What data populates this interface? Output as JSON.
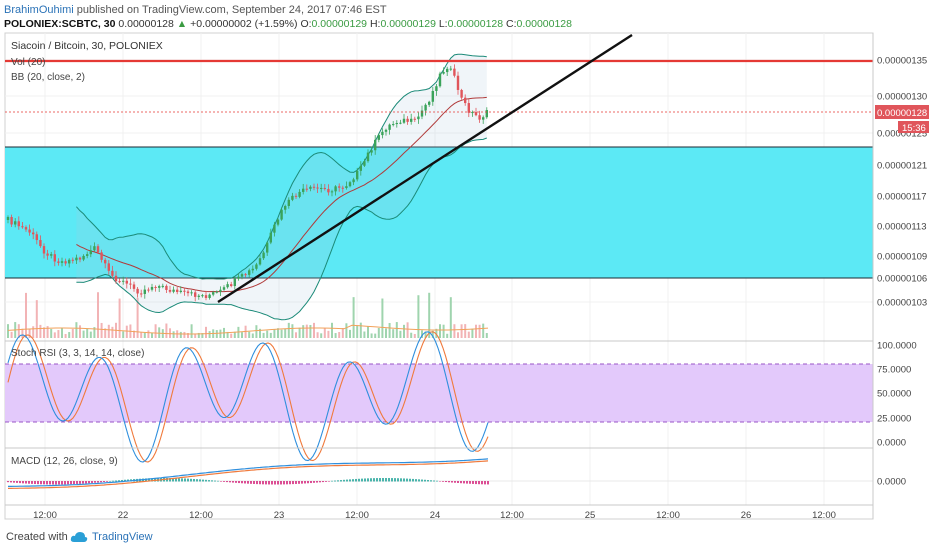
{
  "header": {
    "author": "BrahimOuhimi",
    "published": "published on TradingView.com, September 24, 2017 07:46 EST",
    "symbol": "POLONIEX:SCBTC, 30",
    "open_value": "0.00000128",
    "change": "+0.00000002 (+1.59%)",
    "o_label": "O:",
    "o_value": "0.00000129",
    "h_label": "H:",
    "h_value": "0.00000129",
    "l_label": "L:",
    "l_value": "0.00000128",
    "c_label": "C:",
    "c_value": "0.00000128"
  },
  "legend": {
    "title": "Siacoin / Bitcoin, 30, POLONIEX",
    "vol": "Vol (20)",
    "bb": "BB (20, close, 2)",
    "stoch": "Stoch RSI (3, 3, 14, 14, close)",
    "macd": "MACD (12, 26, close, 9)"
  },
  "price_axis": {
    "ticks": [
      "0.00000135",
      "0.00000130",
      "0.00000125",
      "0.00000121",
      "0.00000117",
      "0.00000113",
      "0.00000109",
      "0.00000106",
      "0.00000103"
    ],
    "last_price": "0.00000128",
    "countdown": "15:36"
  },
  "stoch_axis": {
    "ticks": [
      "100.0000",
      "75.0000",
      "50.0000",
      "25.0000",
      "0.0000"
    ]
  },
  "macd_axis": {
    "ticks": [
      "0.0000"
    ]
  },
  "time_axis": {
    "ticks": [
      "12:00",
      "22",
      "12:00",
      "23",
      "12:00",
      "24",
      "12:00",
      "25",
      "12:00",
      "26",
      "12:00"
    ]
  },
  "footer": {
    "created": "Created with",
    "brand": "TradingView"
  },
  "colors": {
    "zone": "#5ce9f5",
    "resistance": "#e53935",
    "trend": "#111111",
    "bull": "#3aa35a",
    "bear": "#e0555b",
    "rsi_band": "#e3c9fb",
    "stoch_k": "#2f8fdd",
    "stoch_d": "#f07a3c"
  },
  "chart_data": {
    "type": "line",
    "symbol": "POLONIEX:SCBTC",
    "interval": "30",
    "ohlc_readout": {
      "open": 1.29e-06,
      "high": 1.29e-06,
      "low": 1.28e-06,
      "close": 1.28e-06,
      "change": 2e-08,
      "change_pct": 1.59
    },
    "price_range": [
      1.01e-06,
      1.38e-06
    ],
    "annotations": {
      "demand_zone": [
        1.06e-06,
        1.24e-06
      ],
      "resistance_line": 1.348e-06,
      "trend_line": [
        {
          "x": "22 17:00",
          "y": 1.03e-06
        },
        {
          "x": "24 15:00",
          "y": 1.295e-06
        }
      ],
      "last_price_line": 1.28e-06
    },
    "close_series": [
      1.14e-06,
      1.13e-06,
      1.12e-06,
      1.1e-06,
      1.09e-06,
      1.08e-06,
      1.07e-06,
      1.06e-06,
      1.05e-06,
      1.04e-06,
      1.03e-06,
      1.04e-06,
      1.05e-06,
      1.04e-06,
      1.05e-06,
      1.06e-06,
      1.07e-06,
      1.1e-06,
      1.14e-06,
      1.17e-06,
      1.19e-06,
      1.18e-06,
      1.18e-06,
      1.19e-06,
      1.21e-06,
      1.22e-06,
      1.29e-06,
      1.31e-06,
      1.3e-06,
      1.3e-06,
      1.33e-06,
      1.35e-06,
      1.32e-06,
      1.29e-06,
      1.28e-06
    ],
    "stoch_rsi": {
      "range": [
        0,
        100
      ],
      "bands": [
        20,
        80
      ]
    },
    "macd": {
      "zero_line": 0.0
    }
  }
}
